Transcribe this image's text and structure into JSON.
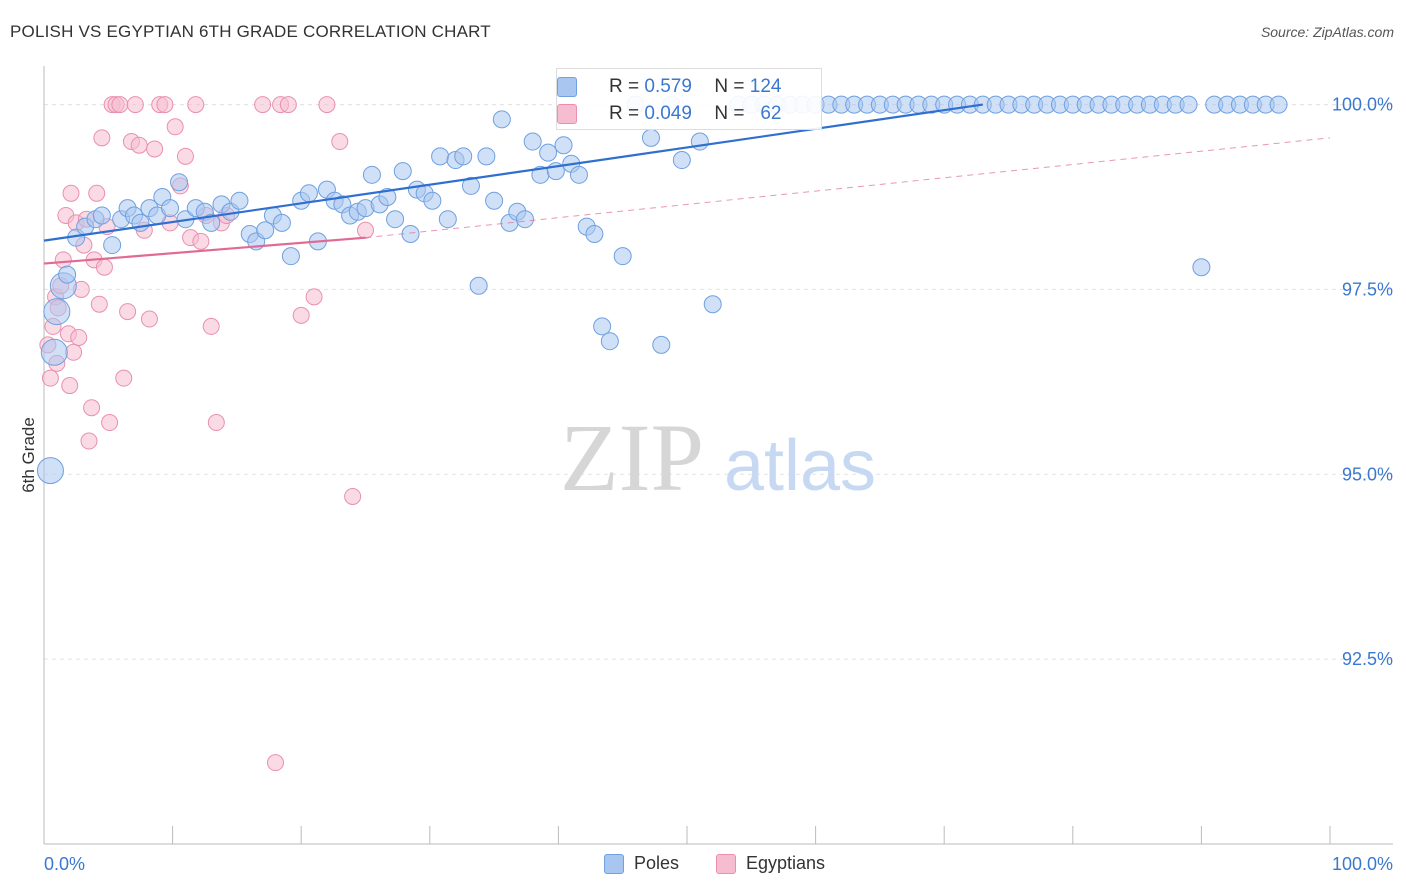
{
  "title": "POLISH VS EGYPTIAN 6TH GRADE CORRELATION CHART",
  "source": "Source: ZipAtlas.com",
  "watermark": {
    "zip": "ZIP",
    "atlas": "atlas"
  },
  "legend": {
    "poles": {
      "label": "Poles",
      "r_label": "R =",
      "r": "0.579",
      "n_label": "N =",
      "n": "124"
    },
    "egyptians": {
      "label": "Egyptians",
      "r_label": "R =",
      "r": "0.049",
      "n_label": "N =",
      "n": "62"
    }
  },
  "colors": {
    "poles_fill": "#a9c6f0",
    "poles_stroke": "#6fa0e0",
    "poles_line": "#2f6fd0",
    "egypt_fill": "#f6bdd0",
    "egypt_stroke": "#ea8fae",
    "egypt_line": "#e06a95",
    "axis_text": "#3a78d0",
    "grid": "#e3e3e3"
  },
  "chart_data": {
    "type": "scatter",
    "title": "POLISH VS EGYPTIAN 6TH GRADE CORRELATION CHART",
    "xlabel": "",
    "ylabel": "6th Grade",
    "xlim": [
      0,
      100
    ],
    "ylim": [
      90.0,
      100.4
    ],
    "x_tick_labels": [
      "0.0%",
      "100.0%"
    ],
    "y_ticks": [
      92.5,
      95.0,
      97.5,
      100.0
    ],
    "y_tick_labels": [
      "92.5%",
      "95.0%",
      "97.5%",
      "100.0%"
    ],
    "grid": true,
    "series": [
      {
        "name": "Poles",
        "trendline": {
          "x0": 0,
          "y0": 98.16,
          "x1": 73,
          "y1": 100.0
        },
        "points": [
          [
            0.5,
            95.05
          ],
          [
            0.8,
            96.65
          ],
          [
            1.0,
            97.2
          ],
          [
            1.5,
            97.55
          ],
          [
            1.8,
            97.7
          ],
          [
            2.5,
            98.2
          ],
          [
            3.2,
            98.35
          ],
          [
            4.0,
            98.45
          ],
          [
            4.5,
            98.5
          ],
          [
            5.3,
            98.1
          ],
          [
            6.0,
            98.45
          ],
          [
            6.5,
            98.6
          ],
          [
            7.0,
            98.5
          ],
          [
            7.5,
            98.4
          ],
          [
            8.2,
            98.6
          ],
          [
            8.8,
            98.5
          ],
          [
            9.2,
            98.75
          ],
          [
            9.8,
            98.6
          ],
          [
            10.5,
            98.95
          ],
          [
            11.0,
            98.45
          ],
          [
            11.8,
            98.6
          ],
          [
            12.5,
            98.55
          ],
          [
            13.0,
            98.4
          ],
          [
            13.8,
            98.65
          ],
          [
            14.5,
            98.55
          ],
          [
            15.2,
            98.7
          ],
          [
            16.0,
            98.25
          ],
          [
            16.5,
            98.15
          ],
          [
            17.2,
            98.3
          ],
          [
            17.8,
            98.5
          ],
          [
            18.5,
            98.4
          ],
          [
            19.2,
            97.95
          ],
          [
            20.0,
            98.7
          ],
          [
            20.6,
            98.8
          ],
          [
            21.3,
            98.15
          ],
          [
            22.0,
            98.85
          ],
          [
            22.6,
            98.7
          ],
          [
            23.2,
            98.65
          ],
          [
            23.8,
            98.5
          ],
          [
            24.4,
            98.55
          ],
          [
            25.0,
            98.6
          ],
          [
            25.5,
            99.05
          ],
          [
            26.1,
            98.65
          ],
          [
            26.7,
            98.75
          ],
          [
            27.3,
            98.45
          ],
          [
            27.9,
            99.1
          ],
          [
            28.5,
            98.25
          ],
          [
            29.0,
            98.85
          ],
          [
            29.6,
            98.8
          ],
          [
            30.2,
            98.7
          ],
          [
            30.8,
            99.3
          ],
          [
            31.4,
            98.45
          ],
          [
            32.0,
            99.25
          ],
          [
            32.6,
            99.3
          ],
          [
            33.2,
            98.9
          ],
          [
            33.8,
            97.55
          ],
          [
            34.4,
            99.3
          ],
          [
            35.0,
            98.7
          ],
          [
            35.6,
            99.8
          ],
          [
            36.2,
            98.4
          ],
          [
            36.8,
            98.55
          ],
          [
            37.4,
            98.45
          ],
          [
            38.0,
            99.5
          ],
          [
            38.6,
            99.05
          ],
          [
            39.2,
            99.35
          ],
          [
            39.8,
            99.1
          ],
          [
            40.4,
            99.45
          ],
          [
            41.0,
            99.2
          ],
          [
            41.6,
            99.05
          ],
          [
            42.2,
            98.35
          ],
          [
            42.8,
            98.25
          ],
          [
            43.4,
            97.0
          ],
          [
            44.0,
            96.8
          ],
          [
            45.0,
            97.95
          ],
          [
            46.0,
            100.0
          ],
          [
            47.2,
            99.55
          ],
          [
            48.0,
            96.75
          ],
          [
            48.8,
            100.0
          ],
          [
            49.6,
            99.25
          ],
          [
            51.0,
            99.5
          ],
          [
            52.0,
            97.3
          ],
          [
            54.0,
            100.0
          ],
          [
            55.0,
            100.0
          ],
          [
            56.0,
            100.0
          ],
          [
            57.0,
            100.0
          ],
          [
            58.0,
            100.0
          ],
          [
            59.0,
            100.0
          ],
          [
            60.0,
            100.0
          ],
          [
            61.0,
            100.0
          ],
          [
            62.0,
            100.0
          ],
          [
            63.0,
            100.0
          ],
          [
            64.0,
            100.0
          ],
          [
            65.0,
            100.0
          ],
          [
            66.0,
            100.0
          ],
          [
            67.0,
            100.0
          ],
          [
            68.0,
            100.0
          ],
          [
            69.0,
            100.0
          ],
          [
            70.0,
            100.0
          ],
          [
            71.0,
            100.0
          ],
          [
            72.0,
            100.0
          ],
          [
            73.0,
            100.0
          ],
          [
            74.0,
            100.0
          ],
          [
            75.0,
            100.0
          ],
          [
            76.0,
            100.0
          ],
          [
            77.0,
            100.0
          ],
          [
            78.0,
            100.0
          ],
          [
            79.0,
            100.0
          ],
          [
            80.0,
            100.0
          ],
          [
            81.0,
            100.0
          ],
          [
            82.0,
            100.0
          ],
          [
            83.0,
            100.0
          ],
          [
            84.0,
            100.0
          ],
          [
            85.0,
            100.0
          ],
          [
            86.0,
            100.0
          ],
          [
            87.0,
            100.0
          ],
          [
            88.0,
            100.0
          ],
          [
            89.0,
            100.0
          ],
          [
            90.0,
            97.8
          ],
          [
            91.0,
            100.0
          ],
          [
            92.0,
            100.0
          ],
          [
            93.0,
            100.0
          ],
          [
            94.0,
            100.0
          ],
          [
            95.0,
            100.0
          ],
          [
            96.0,
            100.0
          ]
        ]
      },
      {
        "name": "Egyptians",
        "trendline": {
          "x0": 0,
          "y0": 97.85,
          "x1": 25,
          "y1": 98.2,
          "dashed_to_x": 100,
          "dashed_to_y": 99.55
        },
        "points": [
          [
            0.3,
            96.75
          ],
          [
            0.5,
            96.3
          ],
          [
            0.7,
            97.0
          ],
          [
            0.9,
            97.4
          ],
          [
            1.1,
            97.25
          ],
          [
            1.3,
            97.55
          ],
          [
            1.5,
            97.9
          ],
          [
            1.7,
            98.5
          ],
          [
            1.9,
            96.9
          ],
          [
            2.1,
            98.8
          ],
          [
            2.3,
            96.65
          ],
          [
            2.5,
            98.4
          ],
          [
            2.7,
            96.85
          ],
          [
            2.9,
            97.5
          ],
          [
            3.1,
            98.1
          ],
          [
            3.3,
            98.45
          ],
          [
            3.5,
            95.45
          ],
          [
            3.7,
            95.9
          ],
          [
            3.9,
            97.9
          ],
          [
            4.1,
            98.8
          ],
          [
            4.3,
            97.3
          ],
          [
            4.5,
            99.55
          ],
          [
            4.7,
            97.8
          ],
          [
            4.9,
            98.35
          ],
          [
            5.1,
            95.7
          ],
          [
            5.3,
            100.0
          ],
          [
            5.6,
            100.0
          ],
          [
            5.9,
            100.0
          ],
          [
            6.2,
            96.3
          ],
          [
            6.5,
            97.2
          ],
          [
            6.8,
            99.5
          ],
          [
            7.1,
            100.0
          ],
          [
            7.4,
            99.45
          ],
          [
            7.8,
            98.3
          ],
          [
            8.2,
            97.1
          ],
          [
            8.6,
            99.4
          ],
          [
            9.0,
            100.0
          ],
          [
            9.4,
            100.0
          ],
          [
            9.8,
            98.4
          ],
          [
            10.2,
            99.7
          ],
          [
            10.6,
            98.9
          ],
          [
            11.0,
            99.3
          ],
          [
            11.4,
            98.2
          ],
          [
            11.8,
            100.0
          ],
          [
            12.2,
            98.15
          ],
          [
            12.6,
            98.5
          ],
          [
            13.0,
            97.0
          ],
          [
            13.4,
            95.7
          ],
          [
            13.8,
            98.4
          ],
          [
            14.2,
            98.5
          ],
          [
            17.0,
            100.0
          ],
          [
            18.0,
            91.1
          ],
          [
            18.4,
            100.0
          ],
          [
            19.0,
            100.0
          ],
          [
            20.0,
            97.15
          ],
          [
            21.0,
            97.4
          ],
          [
            22.0,
            100.0
          ],
          [
            23.0,
            99.5
          ],
          [
            24.0,
            94.7
          ],
          [
            25.0,
            98.3
          ],
          [
            1.0,
            96.5
          ],
          [
            2.0,
            96.2
          ]
        ]
      }
    ]
  }
}
